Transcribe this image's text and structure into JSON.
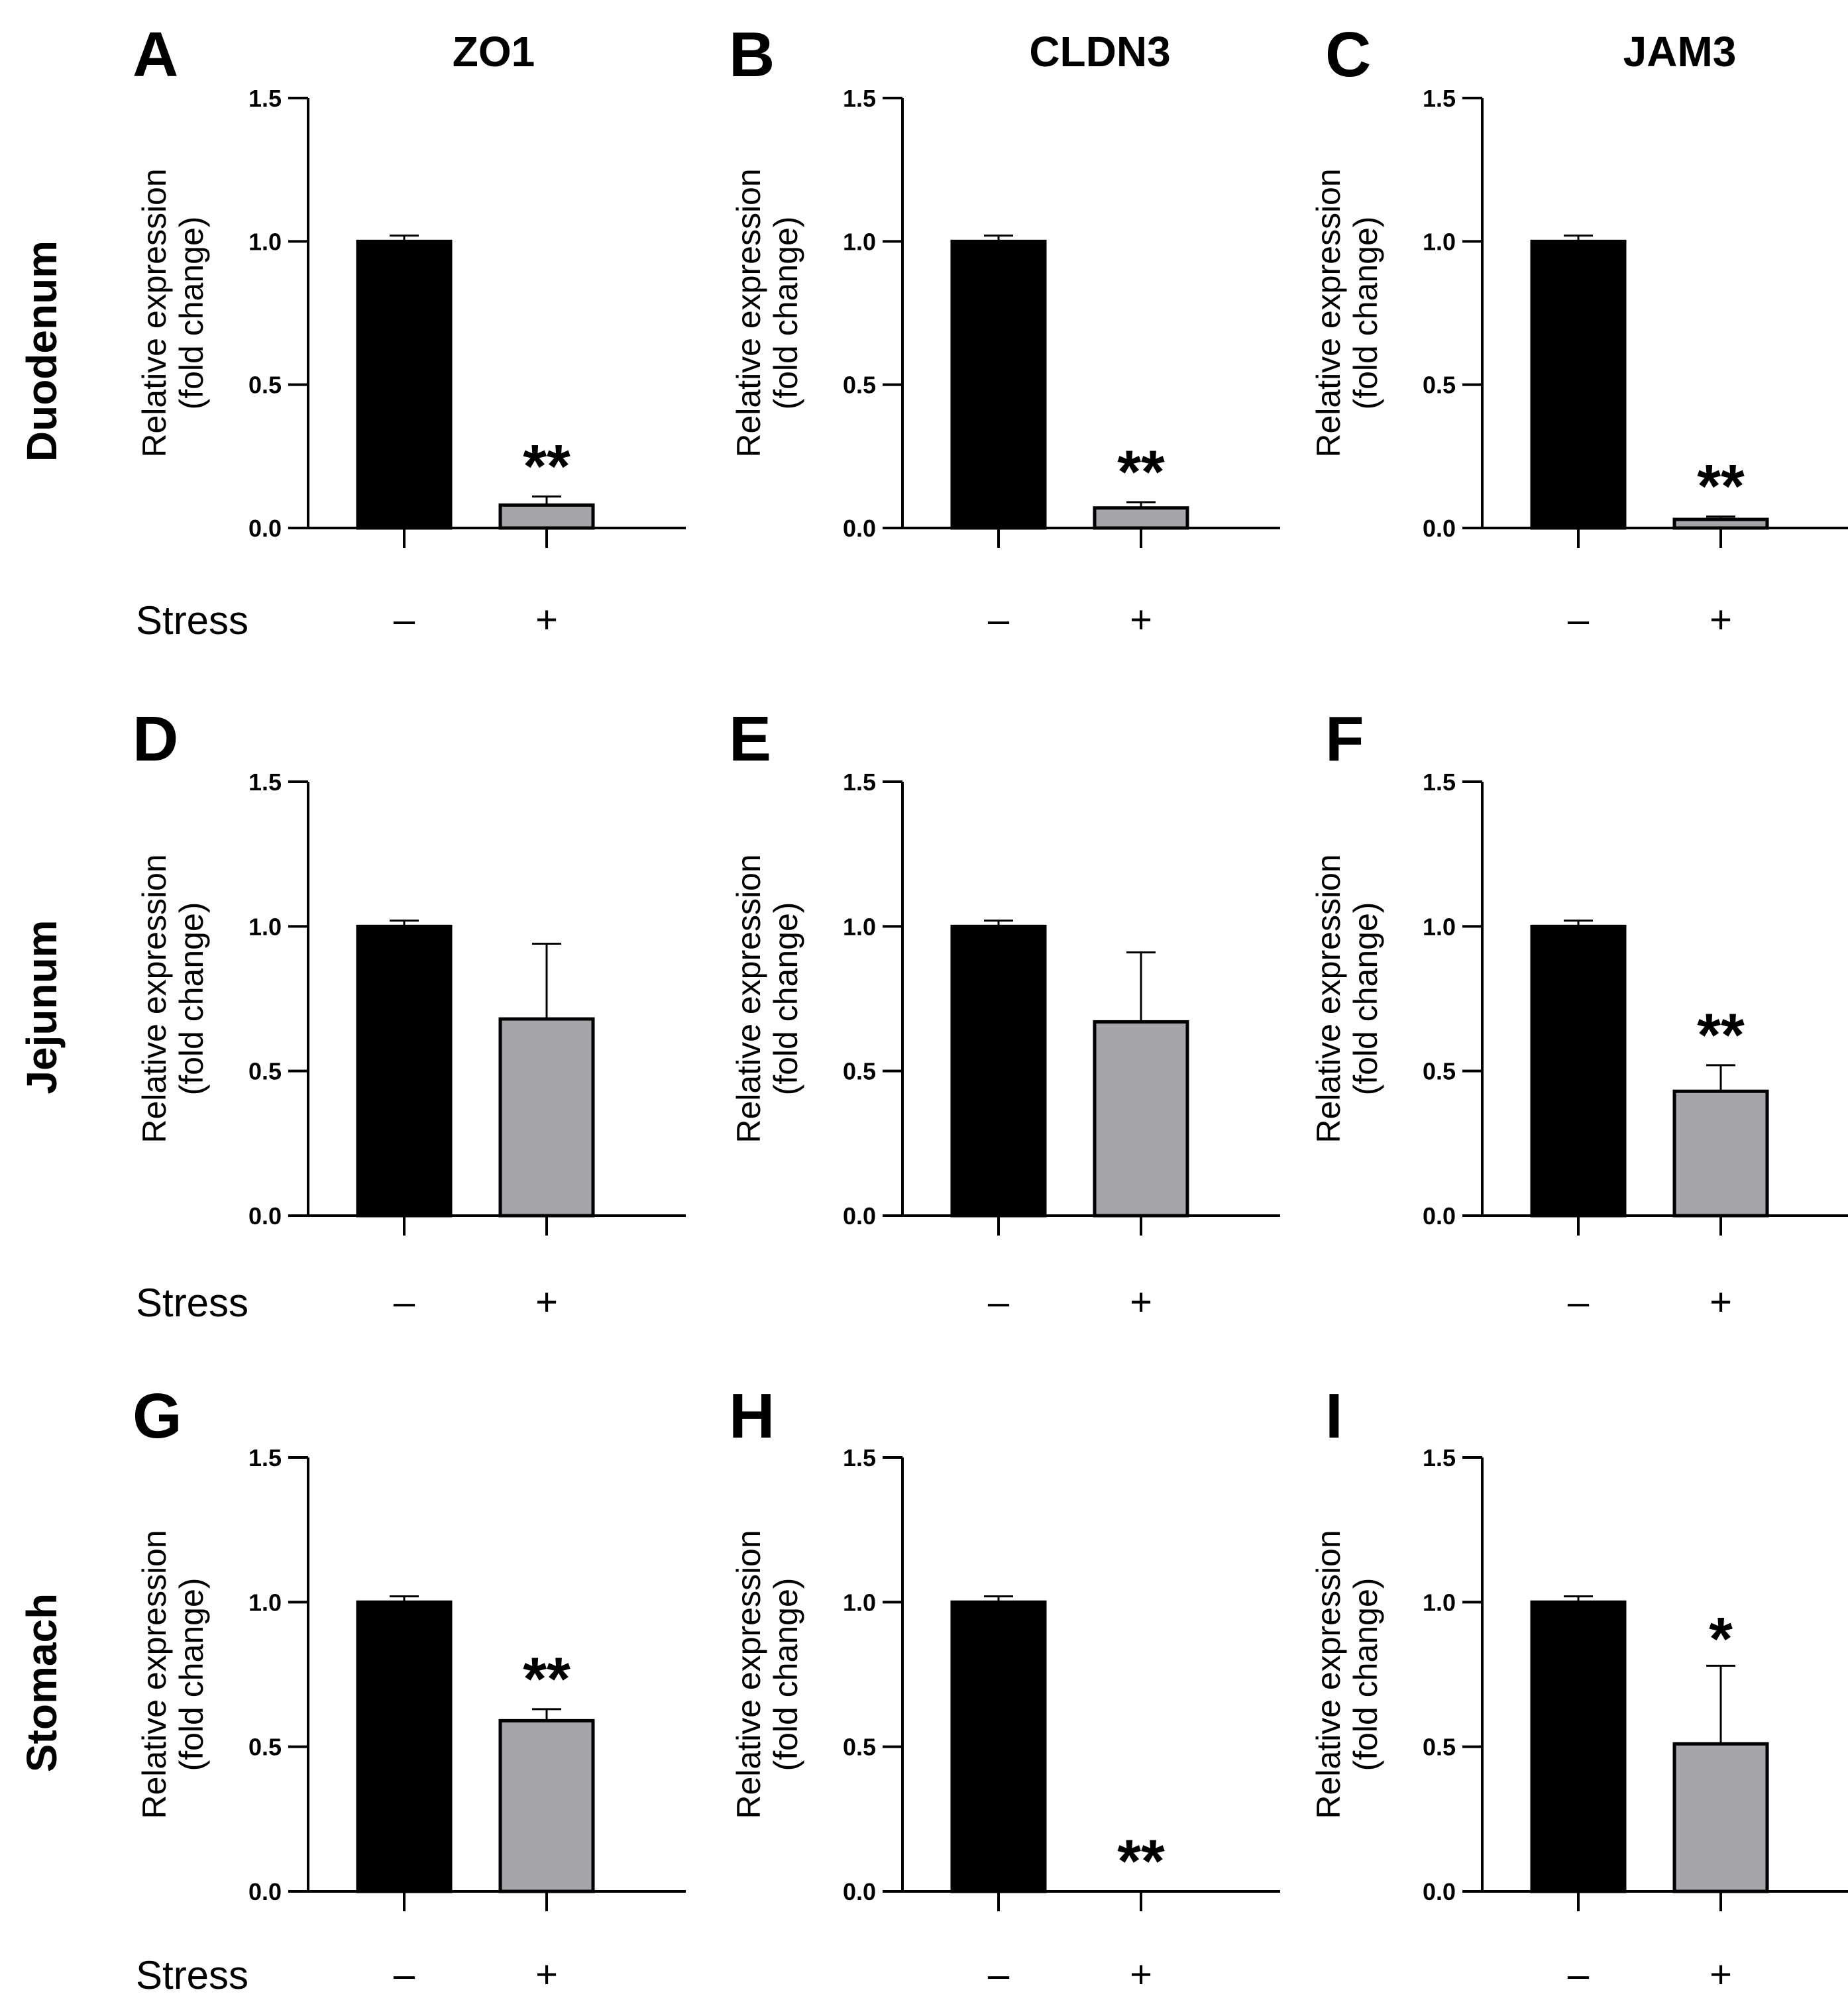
{
  "row_labels": [
    "Duodenum",
    "Jejunum",
    "Stomach"
  ],
  "column_titles": [
    "ZO1",
    "CLDN3",
    "JAM3"
  ],
  "group_label": "Stress",
  "chart_data": [
    {
      "panel": "A",
      "type": "bar",
      "row": "Duodenum",
      "gene": "ZO1",
      "title": "ZO1",
      "ylabel": "Relative expression (fold change)",
      "ylabel_lines": [
        "Relative expression",
        "(fold change)"
      ],
      "xlabel": "Stress",
      "categories": [
        "–",
        "+"
      ],
      "values": [
        1.0,
        0.08
      ],
      "errors": [
        0.02,
        0.03
      ],
      "significance": [
        "",
        "**"
      ],
      "ylim": [
        0,
        1.5
      ],
      "yticks": [
        "0.0",
        "0.5",
        "1.0",
        "1.5"
      ],
      "colors": [
        "#000000",
        "#a5a5aa"
      ],
      "grid": false
    },
    {
      "panel": "B",
      "type": "bar",
      "row": "Duodenum",
      "gene": "CLDN3",
      "title": "CLDN3",
      "ylabel": "Relative expression (fold change)",
      "ylabel_lines": [
        "Relative expression",
        "(fold change)"
      ],
      "xlabel": "",
      "categories": [
        "–",
        "+"
      ],
      "values": [
        1.0,
        0.07
      ],
      "errors": [
        0.02,
        0.02
      ],
      "significance": [
        "",
        "**"
      ],
      "ylim": [
        0,
        1.5
      ],
      "yticks": [
        "0.0",
        "0.5",
        "1.0",
        "1.5"
      ],
      "colors": [
        "#000000",
        "#a5a5aa"
      ],
      "grid": false
    },
    {
      "panel": "C",
      "type": "bar",
      "row": "Duodenum",
      "gene": "JAM3",
      "title": "JAM3",
      "ylabel": "Relative expression (fold change)",
      "ylabel_lines": [
        "Relative expression",
        "(fold change)"
      ],
      "xlabel": "",
      "categories": [
        "–",
        "+"
      ],
      "values": [
        1.0,
        0.03
      ],
      "errors": [
        0.02,
        0.01
      ],
      "significance": [
        "",
        "**"
      ],
      "ylim": [
        0,
        1.5
      ],
      "yticks": [
        "0.0",
        "0.5",
        "1.0",
        "1.5"
      ],
      "colors": [
        "#000000",
        "#a5a5aa"
      ],
      "grid": false
    },
    {
      "panel": "D",
      "type": "bar",
      "row": "Jejunum",
      "gene": "ZO1",
      "title": "",
      "ylabel": "Relative expression (fold change)",
      "ylabel_lines": [
        "Relative expression",
        "(fold change)"
      ],
      "xlabel": "Stress",
      "categories": [
        "–",
        "+"
      ],
      "values": [
        1.0,
        0.68
      ],
      "errors": [
        0.02,
        0.26
      ],
      "significance": [
        "",
        ""
      ],
      "ylim": [
        0,
        1.5
      ],
      "yticks": [
        "0.0",
        "0.5",
        "1.0",
        "1.5"
      ],
      "colors": [
        "#000000",
        "#a5a5aa"
      ],
      "grid": false
    },
    {
      "panel": "E",
      "type": "bar",
      "row": "Jejunum",
      "gene": "CLDN3",
      "title": "",
      "ylabel": "Relative expression (fold change)",
      "ylabel_lines": [
        "Relative expression",
        "(fold change)"
      ],
      "xlabel": "",
      "categories": [
        "–",
        "+"
      ],
      "values": [
        1.0,
        0.67
      ],
      "errors": [
        0.02,
        0.24
      ],
      "significance": [
        "",
        ""
      ],
      "ylim": [
        0,
        1.5
      ],
      "yticks": [
        "0.0",
        "0.5",
        "1.0",
        "1.5"
      ],
      "colors": [
        "#000000",
        "#a5a5aa"
      ],
      "grid": false
    },
    {
      "panel": "F",
      "type": "bar",
      "row": "Jejunum",
      "gene": "JAM3",
      "title": "",
      "ylabel": "Relative expression (fold change)",
      "ylabel_lines": [
        "Relative expression",
        "(fold change)"
      ],
      "xlabel": "",
      "categories": [
        "–",
        "+"
      ],
      "values": [
        1.0,
        0.43
      ],
      "errors": [
        0.02,
        0.09
      ],
      "significance": [
        "",
        "**"
      ],
      "ylim": [
        0,
        1.5
      ],
      "yticks": [
        "0.0",
        "0.5",
        "1.0",
        "1.5"
      ],
      "colors": [
        "#000000",
        "#a5a5aa"
      ],
      "grid": false
    },
    {
      "panel": "G",
      "type": "bar",
      "row": "Stomach",
      "gene": "ZO1",
      "title": "",
      "ylabel": "Relative expression (fold change)",
      "ylabel_lines": [
        "Relative expression",
        "(fold change)"
      ],
      "xlabel": "Stress",
      "categories": [
        "–",
        "+"
      ],
      "values": [
        1.0,
        0.59
      ],
      "errors": [
        0.02,
        0.04
      ],
      "significance": [
        "",
        "**"
      ],
      "ylim": [
        0,
        1.5
      ],
      "yticks": [
        "0.0",
        "0.5",
        "1.0",
        "1.5"
      ],
      "colors": [
        "#000000",
        "#a5a5aa"
      ],
      "grid": false
    },
    {
      "panel": "H",
      "type": "bar",
      "row": "Stomach",
      "gene": "CLDN3",
      "title": "",
      "ylabel": "Relative expression (fold change)",
      "ylabel_lines": [
        "Relative expression",
        "(fold change)"
      ],
      "xlabel": "",
      "categories": [
        "–",
        "+"
      ],
      "values": [
        1.0,
        0.0
      ],
      "errors": [
        0.02,
        0.0
      ],
      "significance": [
        "",
        "**"
      ],
      "ylim": [
        0,
        1.5
      ],
      "yticks": [
        "0.0",
        "0.5",
        "1.0",
        "1.5"
      ],
      "colors": [
        "#000000",
        "#a5a5aa"
      ],
      "grid": false
    },
    {
      "panel": "I",
      "type": "bar",
      "row": "Stomach",
      "gene": "JAM3",
      "title": "",
      "ylabel": "Relative expression (fold change)",
      "ylabel_lines": [
        "Relative expression",
        "(fold change)"
      ],
      "xlabel": "",
      "categories": [
        "–",
        "+"
      ],
      "values": [
        1.0,
        0.51
      ],
      "errors": [
        0.02,
        0.27
      ],
      "significance": [
        "",
        "*"
      ],
      "ylim": [
        0,
        1.5
      ],
      "yticks": [
        "0.0",
        "0.5",
        "1.0",
        "1.5"
      ],
      "colors": [
        "#000000",
        "#a5a5aa"
      ],
      "grid": false
    }
  ]
}
